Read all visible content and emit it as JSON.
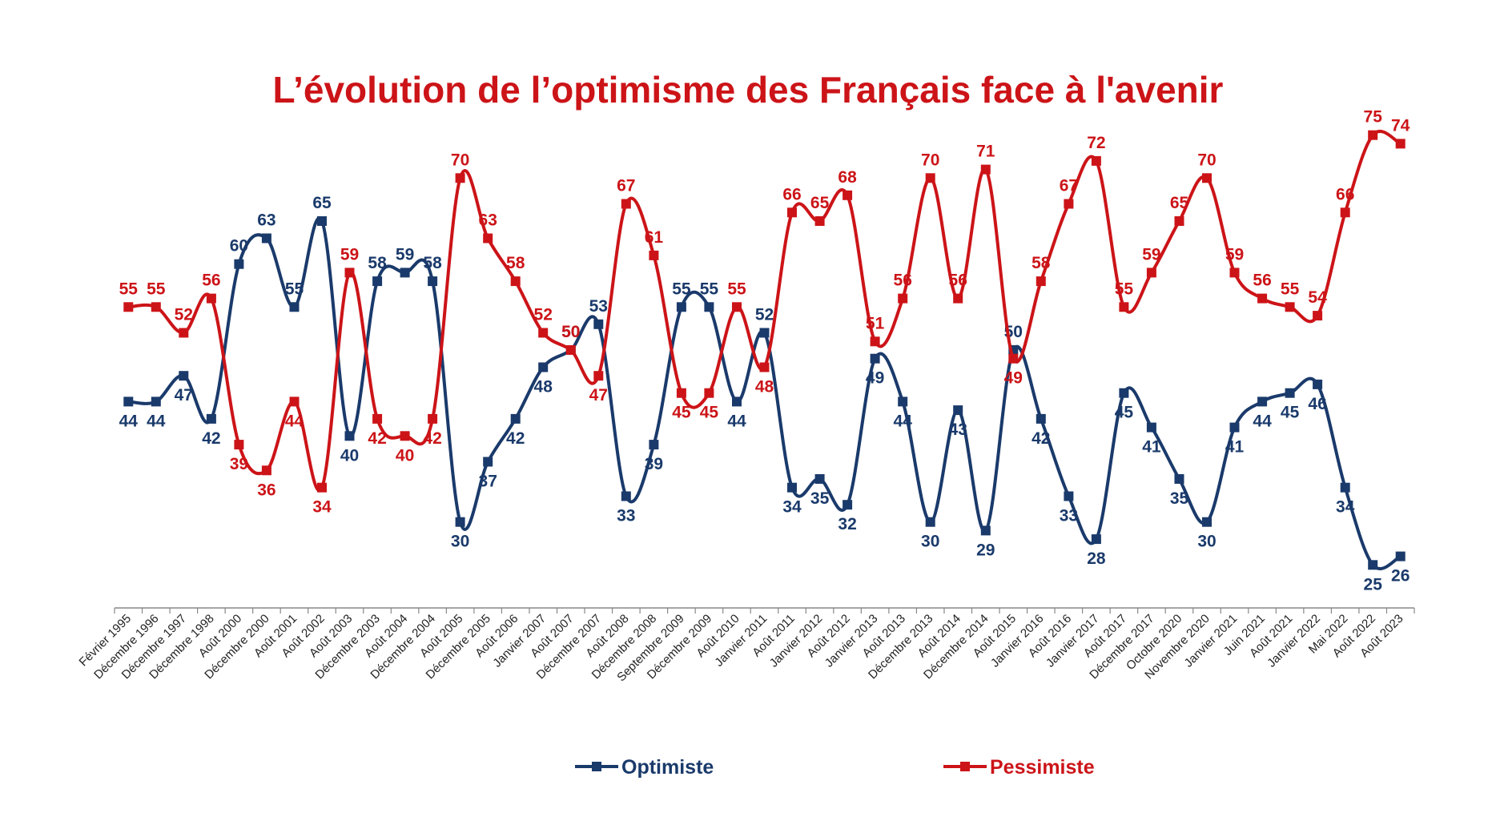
{
  "chart_data": {
    "type": "line",
    "title": "L’évolution de l’optimisme des Français face à l'avenir",
    "xlabel": "",
    "ylabel": "",
    "ylim": [
      20,
      80
    ],
    "grid": false,
    "legend": "bottom",
    "categories": [
      "Février 1995",
      "Décembre 1996",
      "Décembre 1997",
      "Décembre 1998",
      "Août 2000",
      "Décembre 2000",
      "Août 2001",
      "Août 2002",
      "Août 2003",
      "Décembre 2003",
      "Août 2004",
      "Décembre 2004",
      "Août 2005",
      "Décembre 2005",
      "Août 2006",
      "Janvier 2007",
      "Août 2007",
      "Décembre 2007",
      "Août 2008",
      "Décembre 2008",
      "Septembre 2009",
      "Décembre 2009",
      "Août 2010",
      "Janvier 2011",
      "Août 2011",
      "Janvier 2012",
      "Août 2012",
      "Janvier 2013",
      "Août 2013",
      "Décembre 2013",
      "Août 2014",
      "Décembre 2014",
      "Août 2015",
      "Janvier 2016",
      "Août 2016",
      "Janvier 2017",
      "Août 2017",
      "Décembre 2017",
      "Octobre 2020",
      "Novembre 2020",
      "Janvier 2021",
      "Juin 2021",
      "Août 2021",
      "Janvier 2022",
      "Mai 2022",
      "Août 2022",
      "Août 2023"
    ],
    "series": [
      {
        "name": "Optimiste",
        "color": "#1a3a6b",
        "values": [
          44,
          44,
          47,
          42,
          60,
          63,
          55,
          65,
          40,
          58,
          59,
          58,
          30,
          37,
          42,
          48,
          50,
          53,
          33,
          39,
          55,
          55,
          44,
          52,
          34,
          35,
          32,
          49,
          44,
          30,
          43,
          29,
          50,
          42,
          33,
          28,
          45,
          41,
          35,
          30,
          41,
          44,
          45,
          46,
          34,
          25,
          26
        ]
      },
      {
        "name": "Pessimiste",
        "color": "#cc1418",
        "values": [
          55,
          55,
          52,
          56,
          39,
          36,
          44,
          34,
          59,
          42,
          40,
          42,
          70,
          63,
          58,
          52,
          50,
          47,
          67,
          61,
          45,
          45,
          55,
          48,
          66,
          65,
          68,
          51,
          56,
          70,
          56,
          71,
          49,
          58,
          67,
          72,
          55,
          59,
          65,
          70,
          59,
          56,
          55,
          54,
          66,
          75,
          74
        ]
      }
    ]
  }
}
